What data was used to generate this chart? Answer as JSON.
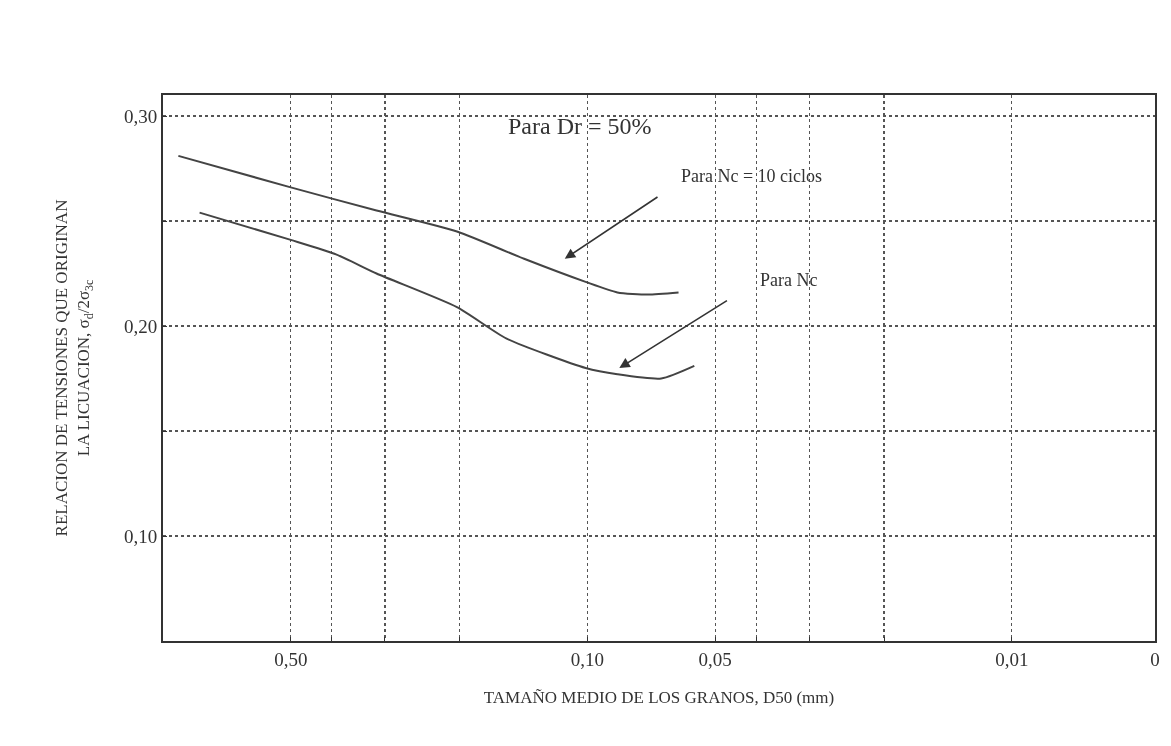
{
  "chart_data": {
    "type": "line",
    "xlabel": "TAMAÑO MEDIO DE LOS GRANOS, D50 (mm)",
    "ylabel": "RELACION DE TENSIONES QUE ORIGINAN\nLA LICUACION, σ$_{d}$/2σ$_{3c}$",
    "log": "x",
    "xlim": [
      1,
      0.0046
    ],
    "xticks": [
      {
        "value": 0.5,
        "label": "0,50"
      },
      {
        "value": 0.4,
        "label": null
      },
      {
        "value": 0.3,
        "label": null
      },
      {
        "value": 0.2,
        "label": null
      },
      {
        "value": 0.1,
        "label": "0,10"
      },
      {
        "value": 0.05,
        "label": "0,05"
      },
      {
        "value": 0.04,
        "label": null
      },
      {
        "value": 0.03,
        "label": null
      },
      {
        "value": 0.02,
        "label": null
      },
      {
        "value": 0.01,
        "label": "0,01"
      },
      {
        "value": 0.0046,
        "label": "0"
      }
    ],
    "ylim": [
      0.05,
      0.31
    ],
    "yticks": [
      {
        "value": 0.1,
        "label": "0,10"
      },
      {
        "value": 0.15,
        "label": null
      },
      {
        "value": 0.2,
        "label": "0,20"
      },
      {
        "value": 0.25,
        "label": null
      },
      {
        "value": 0.3,
        "label": "0,30"
      }
    ],
    "grid": true,
    "marker": "none",
    "line_style": "solid",
    "series": [
      {
        "color": "#444444",
        "x": [
          0.92,
          0.5,
          0.314,
          0.203,
          0.141,
          0.101,
          0.085,
          0.072,
          0.061
        ],
        "values": [
          0.281,
          0.266,
          0.255,
          0.245,
          0.232,
          0.221,
          0.216,
          0.215,
          0.216
        ]
      },
      {
        "color": "#444444",
        "x": [
          0.82,
          0.5,
          0.39,
          0.314,
          0.203,
          0.155,
          0.101,
          0.085,
          0.067,
          0.056
        ],
        "values": [
          0.254,
          0.241,
          0.234,
          0.225,
          0.209,
          0.194,
          0.18,
          0.177,
          0.175,
          0.181
        ]
      }
    ],
    "annotations": [
      "Para Dr = 50%",
      "Para Nc = 10 ciclos",
      "Para Nc"
    ]
  }
}
